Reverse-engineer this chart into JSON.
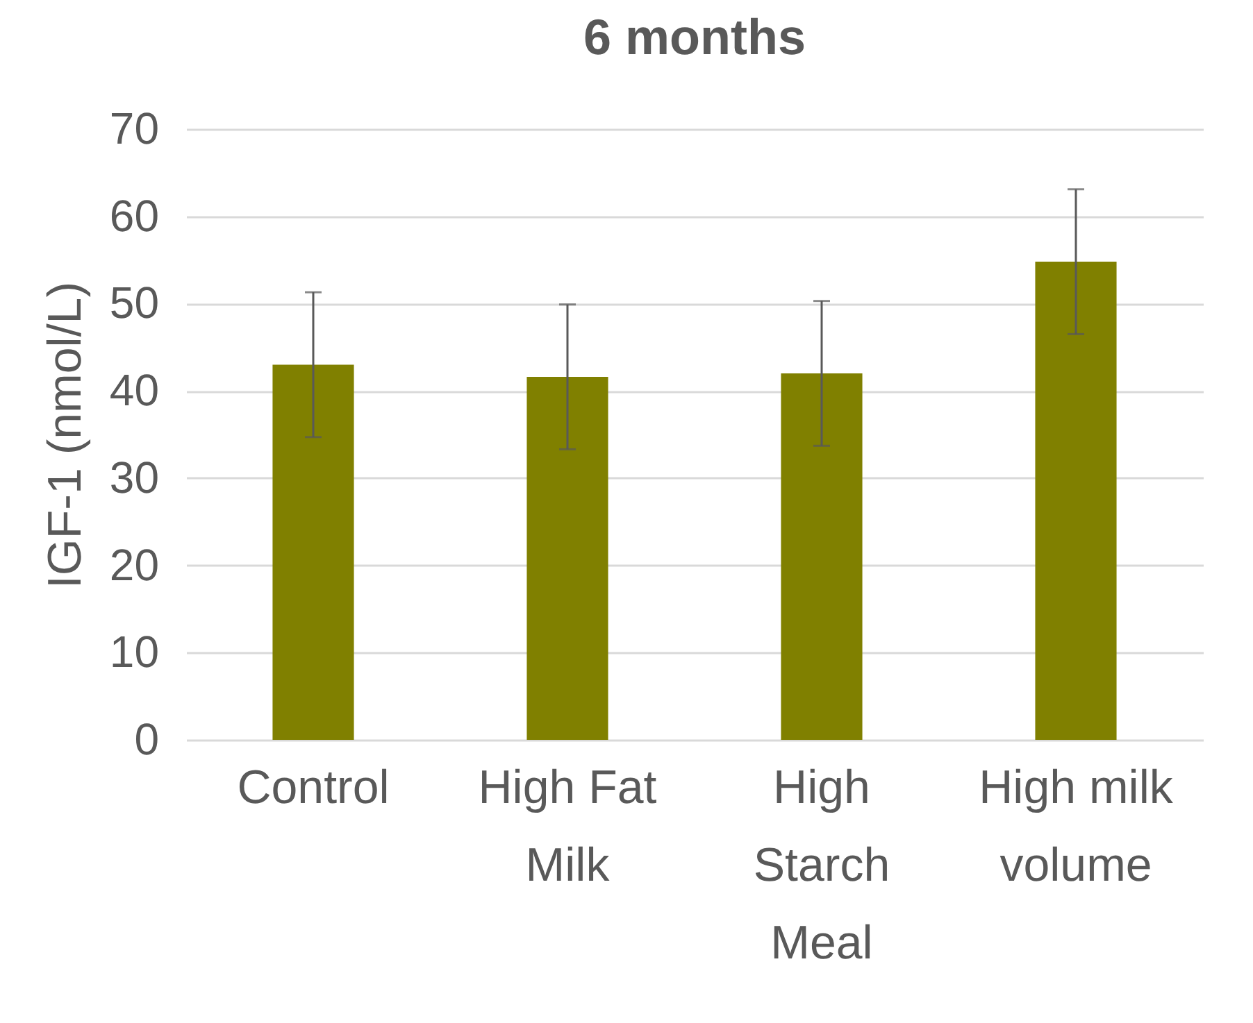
{
  "chart_data": {
    "type": "bar",
    "title": "6 months",
    "ylabel": "IGF-1 (nmol/L)",
    "categories": [
      "Control",
      "High Fat Milk",
      "High Starch Meal",
      "High milk volume"
    ],
    "values": [
      43,
      41.6,
      42,
      54.8
    ],
    "errors": [
      8.3,
      8.3,
      8.3,
      8.3
    ],
    "color": "#808000",
    "ylim": [
      0,
      70
    ],
    "yticks": [
      0,
      10,
      20,
      30,
      40,
      50,
      60,
      70
    ],
    "grid": "y"
  }
}
